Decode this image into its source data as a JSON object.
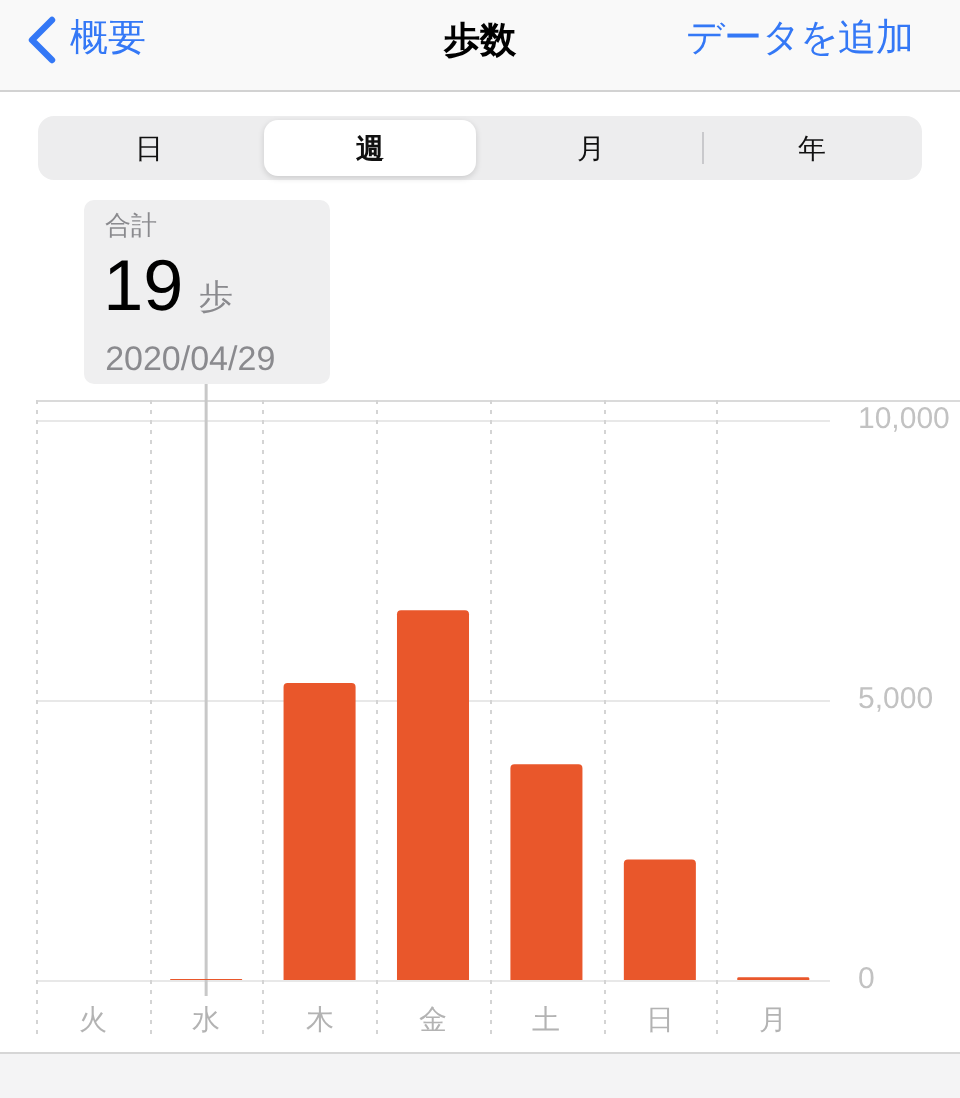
{
  "chart_data": {
    "type": "bar",
    "title": "歩数",
    "categories": [
      "火",
      "水",
      "木",
      "金",
      "土",
      "日",
      "月"
    ],
    "values": [
      null,
      19,
      5300,
      6600,
      3850,
      2150,
      50
    ],
    "color": "#e9572b",
    "ylim": [
      0,
      10350
    ],
    "yticks": [
      0,
      {
        "value": 5000,
        "label": "5,000"
      },
      {
        "value": 10000,
        "label": "10,000"
      }
    ],
    "grid": true,
    "ref_lines": [
      {
        "axis": "x",
        "value": "水",
        "color": "#c8c8c8"
      }
    ],
    "annotations": [
      "概要",
      "データを追加",
      "日",
      "週",
      "月",
      "年",
      "合計",
      "19",
      "歩",
      "2020/04/29"
    ]
  }
}
